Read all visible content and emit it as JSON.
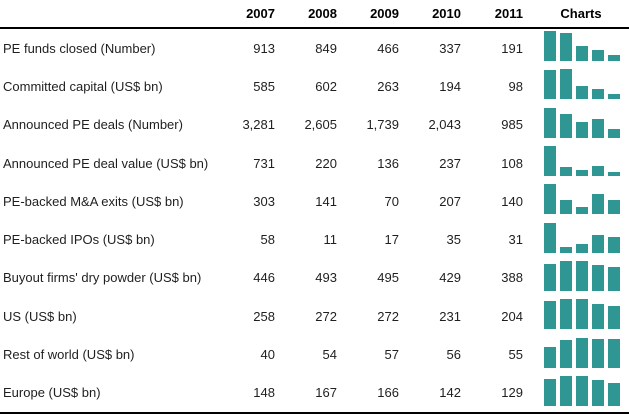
{
  "header": {
    "charts_label": "Charts"
  },
  "colors": {
    "bar_teal": "#2f9694",
    "text": "#1f1f1f",
    "rule": "#000000"
  },
  "chart_data": {
    "type": "table",
    "columns": [
      "2007",
      "2008",
      "2009",
      "2010",
      "2011"
    ],
    "charts_column": "per-row sparkline bar chart, bars scaled to row maximum",
    "rows": [
      {
        "label": "PE funds closed (Number)",
        "values": [
          913,
          849,
          466,
          337,
          191
        ],
        "display": [
          "913",
          "849",
          "466",
          "337",
          "191"
        ]
      },
      {
        "label": "Committed capital (US$ bn)",
        "values": [
          585,
          602,
          263,
          194,
          98
        ],
        "display": [
          "585",
          "602",
          "263",
          "194",
          "98"
        ]
      },
      {
        "label": "Announced PE deals (Number)",
        "values": [
          3281,
          2605,
          1739,
          2043,
          985
        ],
        "display": [
          "3,281",
          "2,605",
          "1,739",
          "2,043",
          "985"
        ]
      },
      {
        "label": "Announced PE deal value (US$ bn)",
        "values": [
          731,
          220,
          136,
          237,
          108
        ],
        "display": [
          "731",
          "220",
          "136",
          "237",
          "108"
        ]
      },
      {
        "label": "PE-backed M&A exits (US$ bn)",
        "values": [
          303,
          141,
          70,
          207,
          140
        ],
        "display": [
          "303",
          "141",
          "70",
          "207",
          "140"
        ]
      },
      {
        "label": "PE-backed IPOs (US$ bn)",
        "values": [
          58,
          11,
          17,
          35,
          31
        ],
        "display": [
          "58",
          "11",
          "17",
          "35",
          "31"
        ]
      },
      {
        "label": "Buyout firms' dry powder (US$ bn)",
        "values": [
          446,
          493,
          495,
          429,
          388
        ],
        "display": [
          "446",
          "493",
          "495",
          "429",
          "388"
        ]
      },
      {
        "label": "US (US$ bn)",
        "values": [
          258,
          272,
          272,
          231,
          204
        ],
        "display": [
          "258",
          "272",
          "272",
          "231",
          "204"
        ]
      },
      {
        "label": "Rest of world (US$ bn)",
        "values": [
          40,
          54,
          57,
          56,
          55
        ],
        "display": [
          "40",
          "54",
          "57",
          "56",
          "55"
        ]
      },
      {
        "label": "Europe (US$ bn)",
        "values": [
          148,
          167,
          166,
          142,
          129
        ],
        "display": [
          "148",
          "167",
          "166",
          "142",
          "129"
        ]
      }
    ]
  }
}
